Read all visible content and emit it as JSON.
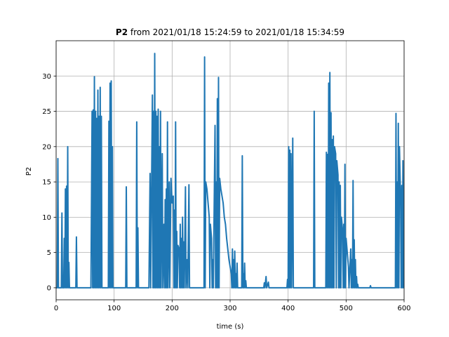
{
  "chart_data": {
    "type": "line",
    "title_bold": "P2",
    "title_rest": " from 2021/01/18 15:24:59 to 2021/01/18 15:34:59",
    "xlabel": "time (s)",
    "ylabel": "P2",
    "xlim": [
      0,
      600
    ],
    "ylim": [
      -1.7,
      35
    ],
    "xticks": [
      0,
      100,
      200,
      300,
      400,
      500,
      600
    ],
    "yticks": [
      0,
      5,
      10,
      15,
      20,
      25,
      30
    ],
    "grid": true,
    "line_color": "#1f77b4",
    "series": [
      {
        "values": [
          [
            0,
            0
          ],
          [
            2,
            0
          ],
          [
            3,
            18.3
          ],
          [
            4,
            0
          ],
          [
            9,
            0
          ],
          [
            10,
            10.6
          ],
          [
            11,
            0
          ],
          [
            13,
            0
          ],
          [
            14,
            7
          ],
          [
            15,
            0
          ],
          [
            16,
            14
          ],
          [
            17,
            0
          ],
          [
            18,
            14.4
          ],
          [
            19,
            0
          ],
          [
            20,
            20
          ],
          [
            21,
            0
          ],
          [
            22,
            3.6
          ],
          [
            23,
            0
          ],
          [
            34,
            0
          ],
          [
            35,
            7.2
          ],
          [
            36,
            0
          ],
          [
            60,
            0
          ],
          [
            62,
            25
          ],
          [
            63,
            0
          ],
          [
            64,
            25.2
          ],
          [
            65,
            0
          ],
          [
            66,
            29.9
          ],
          [
            67,
            0
          ],
          [
            68,
            25
          ],
          [
            69,
            0
          ],
          [
            70,
            24
          ],
          [
            71,
            0
          ],
          [
            72,
            28
          ],
          [
            73,
            0
          ],
          [
            74,
            24.3
          ],
          [
            75,
            0
          ],
          [
            76,
            28.4
          ],
          [
            77,
            0
          ],
          [
            78,
            24.3
          ],
          [
            79,
            0
          ],
          [
            90,
            0
          ],
          [
            91,
            23.6
          ],
          [
            92,
            0
          ],
          [
            93,
            29
          ],
          [
            94,
            0
          ],
          [
            95,
            29.3
          ],
          [
            96,
            0
          ],
          [
            97,
            20
          ],
          [
            98,
            0
          ],
          [
            120,
            0
          ],
          [
            121,
            14.3
          ],
          [
            122,
            0
          ],
          [
            138,
            0
          ],
          [
            139,
            23.5
          ],
          [
            140,
            0
          ],
          [
            141,
            8.5
          ],
          [
            142,
            0
          ],
          [
            160,
            0
          ],
          [
            162,
            16.2
          ],
          [
            163,
            0
          ],
          [
            166,
            27.3
          ],
          [
            167,
            0
          ],
          [
            168,
            25
          ],
          [
            169,
            0
          ],
          [
            170,
            33.2
          ],
          [
            171,
            0
          ],
          [
            172,
            25
          ],
          [
            173,
            0
          ],
          [
            174,
            24.3
          ],
          [
            175,
            0
          ],
          [
            176,
            25.3
          ],
          [
            177,
            0
          ],
          [
            178,
            20
          ],
          [
            179,
            0
          ],
          [
            180,
            25
          ],
          [
            181,
            0
          ],
          [
            183,
            19
          ],
          [
            184,
            0
          ],
          [
            186,
            9
          ],
          [
            187,
            0
          ],
          [
            188,
            12.5
          ],
          [
            189,
            0
          ],
          [
            190,
            14
          ],
          [
            191,
            0
          ],
          [
            192,
            23.5
          ],
          [
            193,
            0
          ],
          [
            195,
            15
          ],
          [
            196,
            0
          ],
          [
            198,
            15.5
          ],
          [
            200,
            12
          ],
          [
            202,
            13
          ],
          [
            203,
            0
          ],
          [
            204,
            11
          ],
          [
            205,
            0
          ],
          [
            206,
            23.5
          ],
          [
            207,
            0
          ],
          [
            208,
            8
          ],
          [
            209,
            0
          ],
          [
            210,
            6
          ],
          [
            212,
            5.5
          ],
          [
            213,
            0
          ],
          [
            214,
            9
          ],
          [
            215,
            0
          ],
          [
            216,
            7
          ],
          [
            217,
            0
          ],
          [
            218,
            10
          ],
          [
            219,
            0
          ],
          [
            220,
            6.5
          ],
          [
            221,
            0
          ],
          [
            223,
            14.3
          ],
          [
            224,
            0
          ],
          [
            226,
            4
          ],
          [
            227,
            0
          ],
          [
            229,
            14.6
          ],
          [
            230,
            0
          ],
          [
            255,
            0
          ],
          [
            256,
            32.7
          ],
          [
            257,
            0
          ],
          [
            258,
            15
          ],
          [
            260,
            14
          ],
          [
            262,
            12
          ],
          [
            264,
            10
          ],
          [
            265,
            0
          ],
          [
            266,
            9
          ],
          [
            268,
            7
          ],
          [
            269,
            0
          ],
          [
            270,
            4
          ],
          [
            271,
            0
          ],
          [
            274,
            23
          ],
          [
            275,
            0
          ],
          [
            276,
            15
          ],
          [
            277,
            0
          ],
          [
            278,
            26.8
          ],
          [
            279,
            0
          ],
          [
            280,
            29.8
          ],
          [
            281,
            0
          ],
          [
            282,
            15.5
          ],
          [
            284,
            14
          ],
          [
            286,
            13
          ],
          [
            288,
            12
          ],
          [
            290,
            10
          ],
          [
            292,
            9
          ],
          [
            294,
            7
          ],
          [
            296,
            5.5
          ],
          [
            298,
            4
          ],
          [
            300,
            3
          ],
          [
            302,
            2
          ],
          [
            303,
            0
          ],
          [
            304,
            5.5
          ],
          [
            305,
            0
          ],
          [
            306,
            4
          ],
          [
            307,
            0
          ],
          [
            308,
            5.2
          ],
          [
            309,
            0
          ],
          [
            310,
            2
          ],
          [
            311,
            0
          ],
          [
            312,
            3.5
          ],
          [
            313,
            0
          ],
          [
            320,
            0
          ],
          [
            321,
            18.7
          ],
          [
            322,
            0
          ],
          [
            323,
            2
          ],
          [
            324,
            0
          ],
          [
            325,
            3.5
          ],
          [
            326,
            0
          ],
          [
            327,
            1
          ],
          [
            328,
            0
          ],
          [
            358,
            0
          ],
          [
            359,
            0.7
          ],
          [
            360,
            0
          ],
          [
            362,
            1.6
          ],
          [
            363,
            0
          ],
          [
            366,
            0.8
          ],
          [
            367,
            0
          ],
          [
            398,
            0
          ],
          [
            399,
            1.2
          ],
          [
            400,
            0
          ],
          [
            401,
            20
          ],
          [
            402,
            0
          ],
          [
            403,
            19.5
          ],
          [
            404,
            0
          ],
          [
            405,
            19
          ],
          [
            406,
            0
          ],
          [
            408,
            21.2
          ],
          [
            409,
            0
          ],
          [
            444,
            0
          ],
          [
            445,
            25
          ],
          [
            446,
            0
          ],
          [
            465,
            0
          ],
          [
            466,
            19.2
          ],
          [
            467,
            0
          ],
          [
            468,
            18.9
          ],
          [
            469,
            0
          ],
          [
            470,
            29
          ],
          [
            471,
            0
          ],
          [
            472,
            30.5
          ],
          [
            473,
            0
          ],
          [
            474,
            24.8
          ],
          [
            475,
            0
          ],
          [
            476,
            21
          ],
          [
            477,
            0
          ],
          [
            478,
            21.5
          ],
          [
            479,
            0
          ],
          [
            480,
            20
          ],
          [
            482,
            19
          ],
          [
            483,
            0
          ],
          [
            484,
            18
          ],
          [
            486,
            16
          ],
          [
            487,
            0
          ],
          [
            488,
            15
          ],
          [
            489,
            0
          ],
          [
            490,
            14.5
          ],
          [
            491,
            0
          ],
          [
            492,
            10
          ],
          [
            494,
            8
          ],
          [
            495,
            0
          ],
          [
            496,
            9
          ],
          [
            497,
            0
          ],
          [
            498,
            17.5
          ],
          [
            499,
            0
          ],
          [
            500,
            7
          ],
          [
            502,
            5
          ],
          [
            504,
            3
          ],
          [
            505,
            0
          ],
          [
            508,
            5.5
          ],
          [
            509,
            0
          ],
          [
            510,
            4
          ],
          [
            511,
            0
          ],
          [
            512,
            15.2
          ],
          [
            513,
            0
          ],
          [
            514,
            6.8
          ],
          [
            515,
            0
          ],
          [
            516,
            4
          ],
          [
            517,
            0
          ],
          [
            518,
            1.6
          ],
          [
            519,
            0
          ],
          [
            520,
            0.5
          ],
          [
            521,
            0
          ],
          [
            541,
            0
          ],
          [
            542,
            0.3
          ],
          [
            543,
            0
          ],
          [
            585,
            0
          ],
          [
            586,
            24.7
          ],
          [
            587,
            0
          ],
          [
            588,
            15
          ],
          [
            589,
            0
          ],
          [
            590,
            23.3
          ],
          [
            591,
            0
          ],
          [
            592,
            20
          ],
          [
            594,
            12
          ],
          [
            595,
            0
          ],
          [
            596,
            14.5
          ],
          [
            597,
            0
          ],
          [
            598,
            18
          ],
          [
            599,
            0
          ],
          [
            600,
            0
          ]
        ]
      }
    ]
  }
}
